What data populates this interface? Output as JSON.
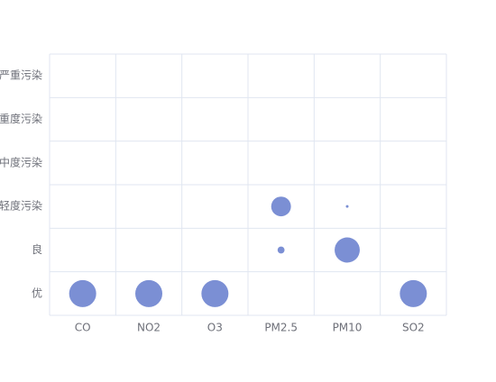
{
  "chart_data": {
    "type": "bubble",
    "x_categories": [
      "CO",
      "NO2",
      "O3",
      "PM2.5",
      "PM10",
      "SO2"
    ],
    "y_categories": [
      "优",
      "良",
      "轻度污染",
      "中度污染",
      "重度污染",
      "严重污染"
    ],
    "color": "#7b8fd4",
    "grid": true,
    "points": [
      {
        "x": "CO",
        "y": "优",
        "size": 30
      },
      {
        "x": "NO2",
        "y": "优",
        "size": 30
      },
      {
        "x": "O3",
        "y": "优",
        "size": 30
      },
      {
        "x": "PM2.5",
        "y": "良",
        "size": 2
      },
      {
        "x": "PM2.5",
        "y": "轻度污染",
        "size": 16
      },
      {
        "x": "PM10",
        "y": "良",
        "size": 26
      },
      {
        "x": "PM10",
        "y": "轻度污染",
        "size": 0.3
      },
      {
        "x": "SO2",
        "y": "优",
        "size": 30
      }
    ]
  }
}
